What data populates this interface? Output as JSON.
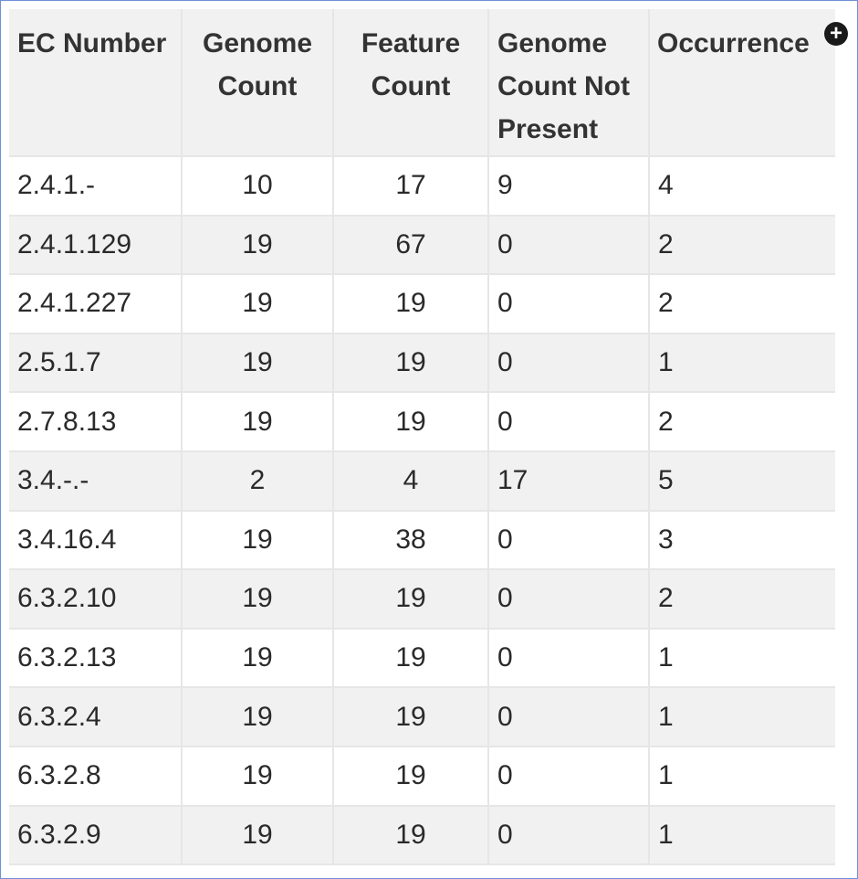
{
  "table": {
    "headers": {
      "ec_number": "EC Number",
      "genome_count": "Genome Count",
      "feature_count": "Feature Count",
      "genome_count_not_present": "Genome Count Not Present",
      "occurrence": "Occurrence"
    },
    "rows": [
      {
        "ec": "2.4.1.-",
        "genome_count": "10",
        "feature_count": "17",
        "not_present": "9",
        "occurrence": "4"
      },
      {
        "ec": "2.4.1.129",
        "genome_count": "19",
        "feature_count": "67",
        "not_present": "0",
        "occurrence": "2"
      },
      {
        "ec": "2.4.1.227",
        "genome_count": "19",
        "feature_count": "19",
        "not_present": "0",
        "occurrence": "2"
      },
      {
        "ec": "2.5.1.7",
        "genome_count": "19",
        "feature_count": "19",
        "not_present": "0",
        "occurrence": "1"
      },
      {
        "ec": "2.7.8.13",
        "genome_count": "19",
        "feature_count": "19",
        "not_present": "0",
        "occurrence": "2"
      },
      {
        "ec": "3.4.-.-",
        "genome_count": "2",
        "feature_count": "4",
        "not_present": "17",
        "occurrence": "5"
      },
      {
        "ec": "3.4.16.4",
        "genome_count": "19",
        "feature_count": "38",
        "not_present": "0",
        "occurrence": "3"
      },
      {
        "ec": "6.3.2.10",
        "genome_count": "19",
        "feature_count": "19",
        "not_present": "0",
        "occurrence": "2"
      },
      {
        "ec": "6.3.2.13",
        "genome_count": "19",
        "feature_count": "19",
        "not_present": "0",
        "occurrence": "1"
      },
      {
        "ec": "6.3.2.4",
        "genome_count": "19",
        "feature_count": "19",
        "not_present": "0",
        "occurrence": "1"
      },
      {
        "ec": "6.3.2.8",
        "genome_count": "19",
        "feature_count": "19",
        "not_present": "0",
        "occurrence": "1"
      },
      {
        "ec": "6.3.2.9",
        "genome_count": "19",
        "feature_count": "19",
        "not_present": "0",
        "occurrence": "1"
      }
    ]
  },
  "icons": {
    "column_add": "plus-circle-icon"
  },
  "colors": {
    "frame_border": "#6f8fd6",
    "header_bg": "#f1f1f1",
    "stripe_bg": "#f1f1f1",
    "grid_line": "#e6e6e6"
  }
}
